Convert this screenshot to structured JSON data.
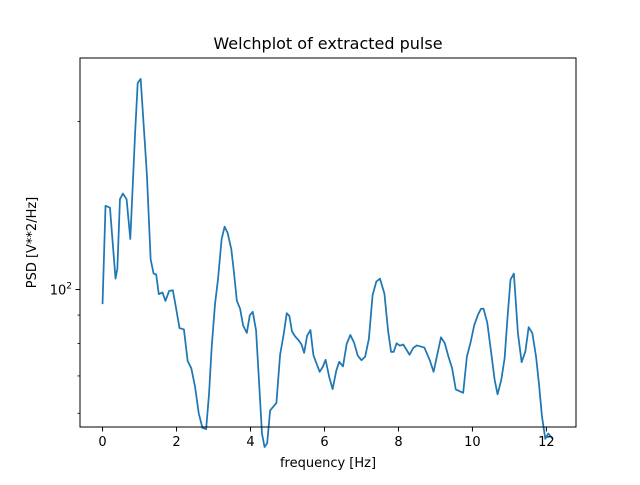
{
  "chart_data": {
    "type": "line",
    "title": "Welchplot of extracted pulse",
    "xlabel": "frequency [Hz]",
    "ylabel": "PSD [V**2/Hz]",
    "xlim": [
      -0.61,
      12.8
    ],
    "ylim": [
      56.7,
      260
    ],
    "yscale": "log",
    "grid": false,
    "legend": "none",
    "x_ticks": [
      0,
      2,
      4,
      6,
      8,
      10,
      12
    ],
    "x_tick_labels": [
      "0",
      "2",
      "4",
      "6",
      "8",
      "10",
      "12"
    ],
    "y_major_ticks": [
      100
    ],
    "y_major_labels": [
      {
        "base": "10",
        "exp": "2"
      }
    ],
    "y_minor_ticks": [
      60,
      70,
      80,
      90,
      200
    ],
    "series": [
      {
        "color": "#1f77b4",
        "x": [
          0.0,
          0.08,
          0.2,
          0.35,
          0.4,
          0.47,
          0.55,
          0.65,
          0.75,
          0.8,
          0.88,
          0.95,
          1.03,
          1.12,
          1.2,
          1.3,
          1.38,
          1.45,
          1.52,
          1.62,
          1.7,
          1.8,
          1.9,
          1.98,
          2.08,
          2.2,
          2.3,
          2.4,
          2.5,
          2.6,
          2.7,
          2.8,
          2.88,
          2.95,
          3.04,
          3.12,
          3.22,
          3.3,
          3.38,
          3.48,
          3.55,
          3.63,
          3.72,
          3.8,
          3.9,
          3.98,
          4.06,
          4.15,
          4.23,
          4.31,
          4.38,
          4.45,
          4.53,
          4.61,
          4.7,
          4.8,
          4.9,
          4.98,
          5.05,
          5.12,
          5.2,
          5.3,
          5.38,
          5.45,
          5.53,
          5.62,
          5.7,
          5.78,
          5.87,
          5.95,
          6.03,
          6.13,
          6.22,
          6.32,
          6.4,
          6.5,
          6.6,
          6.7,
          6.8,
          6.9,
          7.0,
          7.1,
          7.2,
          7.3,
          7.4,
          7.5,
          7.62,
          7.72,
          7.8,
          7.87,
          7.95,
          8.04,
          8.13,
          8.3,
          8.4,
          8.5,
          8.7,
          8.85,
          8.95,
          9.05,
          9.15,
          9.25,
          9.35,
          9.45,
          9.55,
          9.75,
          9.85,
          9.95,
          10.05,
          10.15,
          10.23,
          10.3,
          10.4,
          10.5,
          10.6,
          10.68,
          10.78,
          10.87,
          10.95,
          11.03,
          11.12,
          11.23,
          11.33,
          11.43,
          11.52,
          11.62,
          11.72,
          11.8,
          11.88,
          11.97,
          12.05,
          12.15
        ],
        "y": [
          94.5,
          141.3,
          140.2,
          104.6,
          109,
          145.2,
          148.6,
          145.1,
          123.2,
          145.5,
          190.8,
          234.5,
          238.5,
          193.3,
          159.9,
          113.2,
          106.8,
          106.4,
          98.1,
          98.8,
          95.4,
          99.4,
          99.7,
          93.2,
          85.3,
          84.8,
          74.5,
          72.2,
          67,
          60,
          56.5,
          56.2,
          65.2,
          78.8,
          94.1,
          104.2,
          123.2,
          129.6,
          126.4,
          118.2,
          107.7,
          95.5,
          92.3,
          86.2,
          83.6,
          89.9,
          91.2,
          84.5,
          68.5,
          55.2,
          52.2,
          53,
          60.7,
          61.6,
          62.6,
          76.4,
          83.4,
          90.7,
          89.7,
          84.2,
          82.5,
          81.1,
          79.7,
          77,
          82.6,
          84.6,
          76.3,
          73.8,
          71.2,
          72.6,
          74.8,
          69.6,
          66.3,
          71.6,
          74.2,
          72.8,
          79.9,
          82.9,
          80.3,
          76.1,
          74.7,
          75.8,
          81.6,
          97.6,
          103.3,
          104.6,
          98.3,
          84.3,
          77.3,
          77.3,
          80.1,
          79.3,
          79.7,
          76.4,
          78.6,
          79.4,
          78.7,
          74.6,
          71.2,
          76.5,
          82.1,
          80.2,
          75.9,
          72.3,
          66.2,
          65.3,
          75.8,
          80.4,
          86.4,
          90.1,
          92.3,
          92.4,
          87.3,
          77.7,
          68.9,
          64.9,
          68.9,
          75.3,
          89.4,
          104.2,
          106.8,
          83.5,
          74.1,
          77.4,
          85.6,
          83.5,
          75.8,
          67.6,
          59.2,
          54,
          55.2,
          54.2
        ]
      }
    ]
  }
}
